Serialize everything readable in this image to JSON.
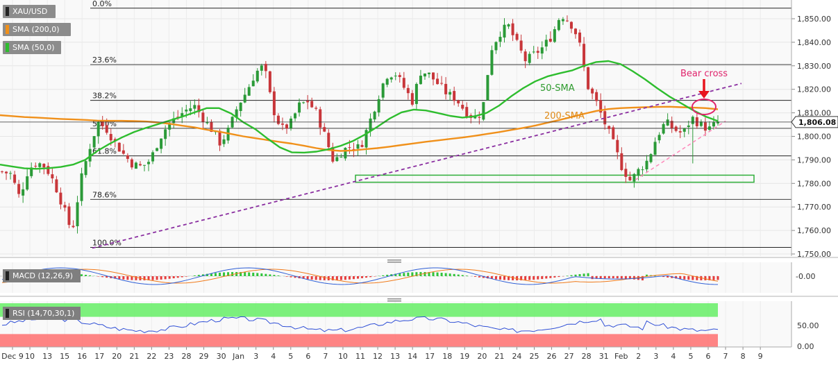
{
  "symbol": "XAU/USD",
  "legend": [
    {
      "label": "SMA (200,0)",
      "color": "#f0901a"
    },
    {
      "label": "SMA (50,0)",
      "color": "#2ebd2e"
    }
  ],
  "colors": {
    "up_candle": "#2b9a38",
    "down_candle": "#c8363a",
    "sma50": "#2ebd2e",
    "sma200": "#f0901a",
    "trendline": "#8a2ea0",
    "support_line": "#ff88bb",
    "annotation": "#e0246c",
    "zone": "#2fae3a",
    "rsi_upper": "#66ee66",
    "rsi_lower": "#ff7070",
    "macd_line": "#2f5fd6",
    "signal_line": "#f07a1a"
  },
  "price_labels": {
    "current": "1,806.08",
    "axis": [
      "1,850.00",
      "1,840.00",
      "1,830.00",
      "1,820.00",
      "1,810.00",
      "1,800.00",
      "1,790.00",
      "1,780.00",
      "1,770.00",
      "1,760.00",
      "1,750.00"
    ]
  },
  "fib_levels": [
    {
      "label": "0.0%",
      "price": 1854.5
    },
    {
      "label": "23.6%",
      "price": 1830.5
    },
    {
      "label": "38.2%",
      "price": 1815.3
    },
    {
      "label": "50.0%",
      "price": 1803.4
    },
    {
      "label": "61.8%",
      "price": 1791.7
    },
    {
      "label": "78.6%",
      "price": 1773.2
    },
    {
      "label": "100.0%",
      "price": 1752.8
    }
  ],
  "annotations": {
    "sma50_label": "50-SMA",
    "sma200_label": "200-SMA",
    "bear_cross": "Bear cross"
  },
  "macd": {
    "label": "MACD (12,26,9)",
    "axis": [
      "-0.00"
    ]
  },
  "rsi": {
    "label": "RSI (14,70,30,1)",
    "axis": [
      "50.00",
      "0.00"
    ]
  },
  "x_labels": [
    "Dec 9",
    "10",
    "13",
    "15",
    "16",
    "17",
    "20",
    "21",
    "22",
    "23",
    "28",
    "29",
    "30",
    "Jan",
    "3",
    "4",
    "5",
    "6",
    "7",
    "10",
    "11",
    "12",
    "13",
    "14",
    "17",
    "18",
    "19",
    "20",
    "21",
    "24",
    "25",
    "26",
    "27",
    "28",
    "31",
    "Feb",
    "2",
    "3",
    "4",
    "5",
    "6",
    "7",
    "8",
    "9"
  ],
  "chart_data": {
    "type": "candlestick",
    "title": "XAU/USD",
    "xlabel": "",
    "ylabel": "",
    "ylim": [
      1748,
      1856
    ],
    "close_path": [
      1785,
      1784,
      1774,
      1786,
      1789,
      1787,
      1780,
      1770,
      1759,
      1781,
      1795,
      1806,
      1803,
      1797,
      1792,
      1788,
      1787,
      1790,
      1799,
      1805,
      1808,
      1811,
      1813,
      1808,
      1803,
      1797,
      1803,
      1813,
      1819,
      1827,
      1830,
      1812,
      1803,
      1805,
      1813,
      1815,
      1810,
      1800,
      1789,
      1794,
      1796,
      1795,
      1805,
      1816,
      1826,
      1827,
      1821,
      1815,
      1828,
      1826,
      1822,
      1818,
      1816,
      1811,
      1808,
      1810,
      1837,
      1844,
      1847,
      1839,
      1832,
      1835,
      1838,
      1843,
      1852,
      1849,
      1842,
      1822,
      1815,
      1806,
      1797,
      1787,
      1781,
      1786,
      1790,
      1800,
      1806,
      1803,
      1801,
      1808,
      1805,
      1803,
      1806
    ],
    "sma200_path": [
      1809,
      1808.6,
      1808.2,
      1808,
      1807.7,
      1807.4,
      1807.2,
      1807,
      1806.7,
      1806.6,
      1806.6,
      1806.5,
      1806.3,
      1805.9,
      1805.3,
      1804.5,
      1803.8,
      1802.8,
      1802,
      1801,
      1800,
      1799.2,
      1798.4,
      1797.6,
      1796.9,
      1796,
      1795,
      1794.2,
      1793.8,
      1794,
      1794.5,
      1795,
      1795.6,
      1796.3,
      1797,
      1797.7,
      1798.3,
      1798.9,
      1799.5,
      1800.2,
      1801,
      1801.8,
      1802.7,
      1803.6,
      1804.6,
      1805.8,
      1807,
      1808.3,
      1809.6,
      1810.8,
      1811.6,
      1812,
      1812.2,
      1812.4,
      1812.5,
      1812.6,
      1812.4,
      1812.2,
      1812,
      1811.5
    ],
    "sma50_path": [
      1788,
      1787.2,
      1786.4,
      1786.2,
      1786.5,
      1787,
      1788,
      1790,
      1793.8,
      1796.8,
      1799.5,
      1801.8,
      1803.6,
      1805.2,
      1806.8,
      1808.4,
      1810.2,
      1812,
      1812,
      1809.7,
      1806,
      1803,
      1799,
      1795.3,
      1793.2,
      1793.1,
      1793.5,
      1794.5,
      1796,
      1798,
      1800.8,
      1804,
      1807.5,
      1810.2,
      1811.4,
      1811,
      1809.9,
      1808.7,
      1808,
      1808.5,
      1810,
      1813,
      1817,
      1820.5,
      1823.4,
      1825.5,
      1826.8,
      1828,
      1830,
      1831.6,
      1832,
      1830.7,
      1827.7,
      1824.3,
      1820.5,
      1817,
      1814,
      1811,
      1808.4,
      1806.5
    ],
    "purple_trendline": {
      "from": {
        "x_index": 0,
        "price": 1752.5
      },
      "to": {
        "x_index": 1,
        "price": 1822.5
      }
    },
    "support_zone": [
      1780.5,
      1783.5
    ],
    "series": [
      {
        "name": "50-SMA",
        "values": []
      },
      {
        "name": "200-SMA",
        "values": []
      }
    ]
  }
}
